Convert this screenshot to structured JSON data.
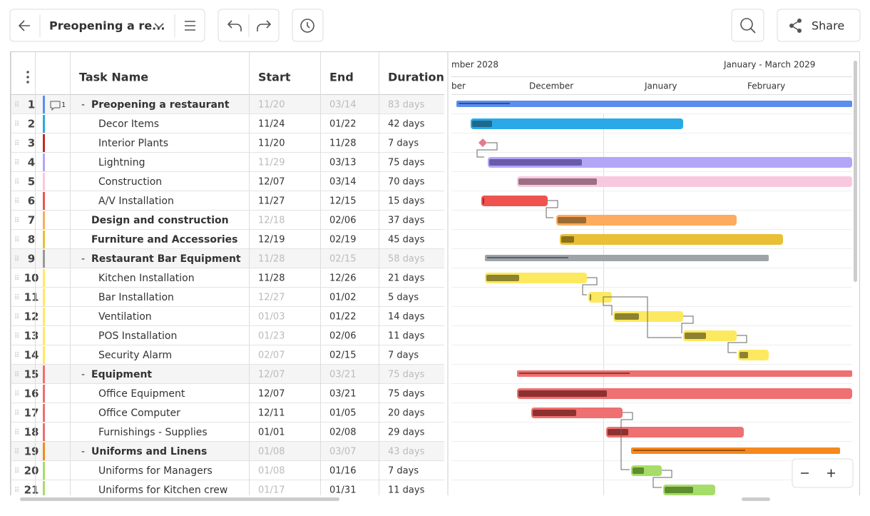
{
  "toolbar": {
    "project_title": "Preopening a re...",
    "share": "Share"
  },
  "grid": {
    "headers": {
      "task_name": "Task Name",
      "start": "Start",
      "end": "End",
      "duration": "Duration"
    },
    "comment_count": "1",
    "rows": [
      {
        "id": "1",
        "name": "Preopening a restaurant",
        "start": "11/20",
        "end": "03/14",
        "duration": "83 days"
      },
      {
        "id": "2",
        "name": "Decor Items",
        "start": "11/24",
        "end": "01/22",
        "duration": "42 days"
      },
      {
        "id": "3",
        "name": "Interior Plants",
        "start": "11/20",
        "end": "11/28",
        "duration": "7 days"
      },
      {
        "id": "4",
        "name": "Lightning",
        "start": "11/29",
        "end": "03/13",
        "duration": "75 days"
      },
      {
        "id": "5",
        "name": "Construction",
        "start": "12/07",
        "end": "03/14",
        "duration": "70 days"
      },
      {
        "id": "6",
        "name": "A/V Installation",
        "start": "11/27",
        "end": "12/15",
        "duration": "15 days"
      },
      {
        "id": "7",
        "name": "Design and construction",
        "start": "12/18",
        "end": "02/06",
        "duration": "37 days"
      },
      {
        "id": "8",
        "name": "Furniture and Accessories",
        "start": "12/19",
        "end": "02/19",
        "duration": "45 days"
      },
      {
        "id": "9",
        "name": "Restaurant Bar Equipment",
        "start": "11/28",
        "end": "02/15",
        "duration": "58 days"
      },
      {
        "id": "10",
        "name": "Kitchen Installation",
        "start": "11/28",
        "end": "12/26",
        "duration": "21 days"
      },
      {
        "id": "11",
        "name": "Bar Installation",
        "start": "12/27",
        "end": "01/02",
        "duration": "5 days"
      },
      {
        "id": "12",
        "name": "Ventilation",
        "start": "01/03",
        "end": "01/22",
        "duration": "14 days"
      },
      {
        "id": "13",
        "name": "POS Installation",
        "start": "01/23",
        "end": "02/06",
        "duration": "11 days"
      },
      {
        "id": "14",
        "name": "Security Alarm",
        "start": "02/07",
        "end": "02/15",
        "duration": "7 days"
      },
      {
        "id": "15",
        "name": "Equipment",
        "start": "12/07",
        "end": "03/21",
        "duration": "75 days"
      },
      {
        "id": "16",
        "name": "Office Equipment",
        "start": "12/07",
        "end": "03/21",
        "duration": "75 days"
      },
      {
        "id": "17",
        "name": "Office Computer",
        "start": "12/11",
        "end": "01/05",
        "duration": "20 days"
      },
      {
        "id": "18",
        "name": "Furnishings - Supplies",
        "start": "01/01",
        "end": "02/08",
        "duration": "29 days"
      },
      {
        "id": "19",
        "name": "Uniforms and Linens",
        "start": "01/08",
        "end": "03/07",
        "duration": "43 days"
      },
      {
        "id": "20",
        "name": "Uniforms for Managers",
        "start": "01/08",
        "end": "01/16",
        "duration": "7 days"
      },
      {
        "id": "21",
        "name": "Uniforms for Kitchen crew",
        "start": "01/17",
        "end": "01/31",
        "duration": "11 days"
      }
    ]
  },
  "timeline": {
    "period_left": "mber 2028",
    "period_right": "January - March 2029",
    "months": [
      "ber",
      "December",
      "January",
      "February"
    ]
  }
}
